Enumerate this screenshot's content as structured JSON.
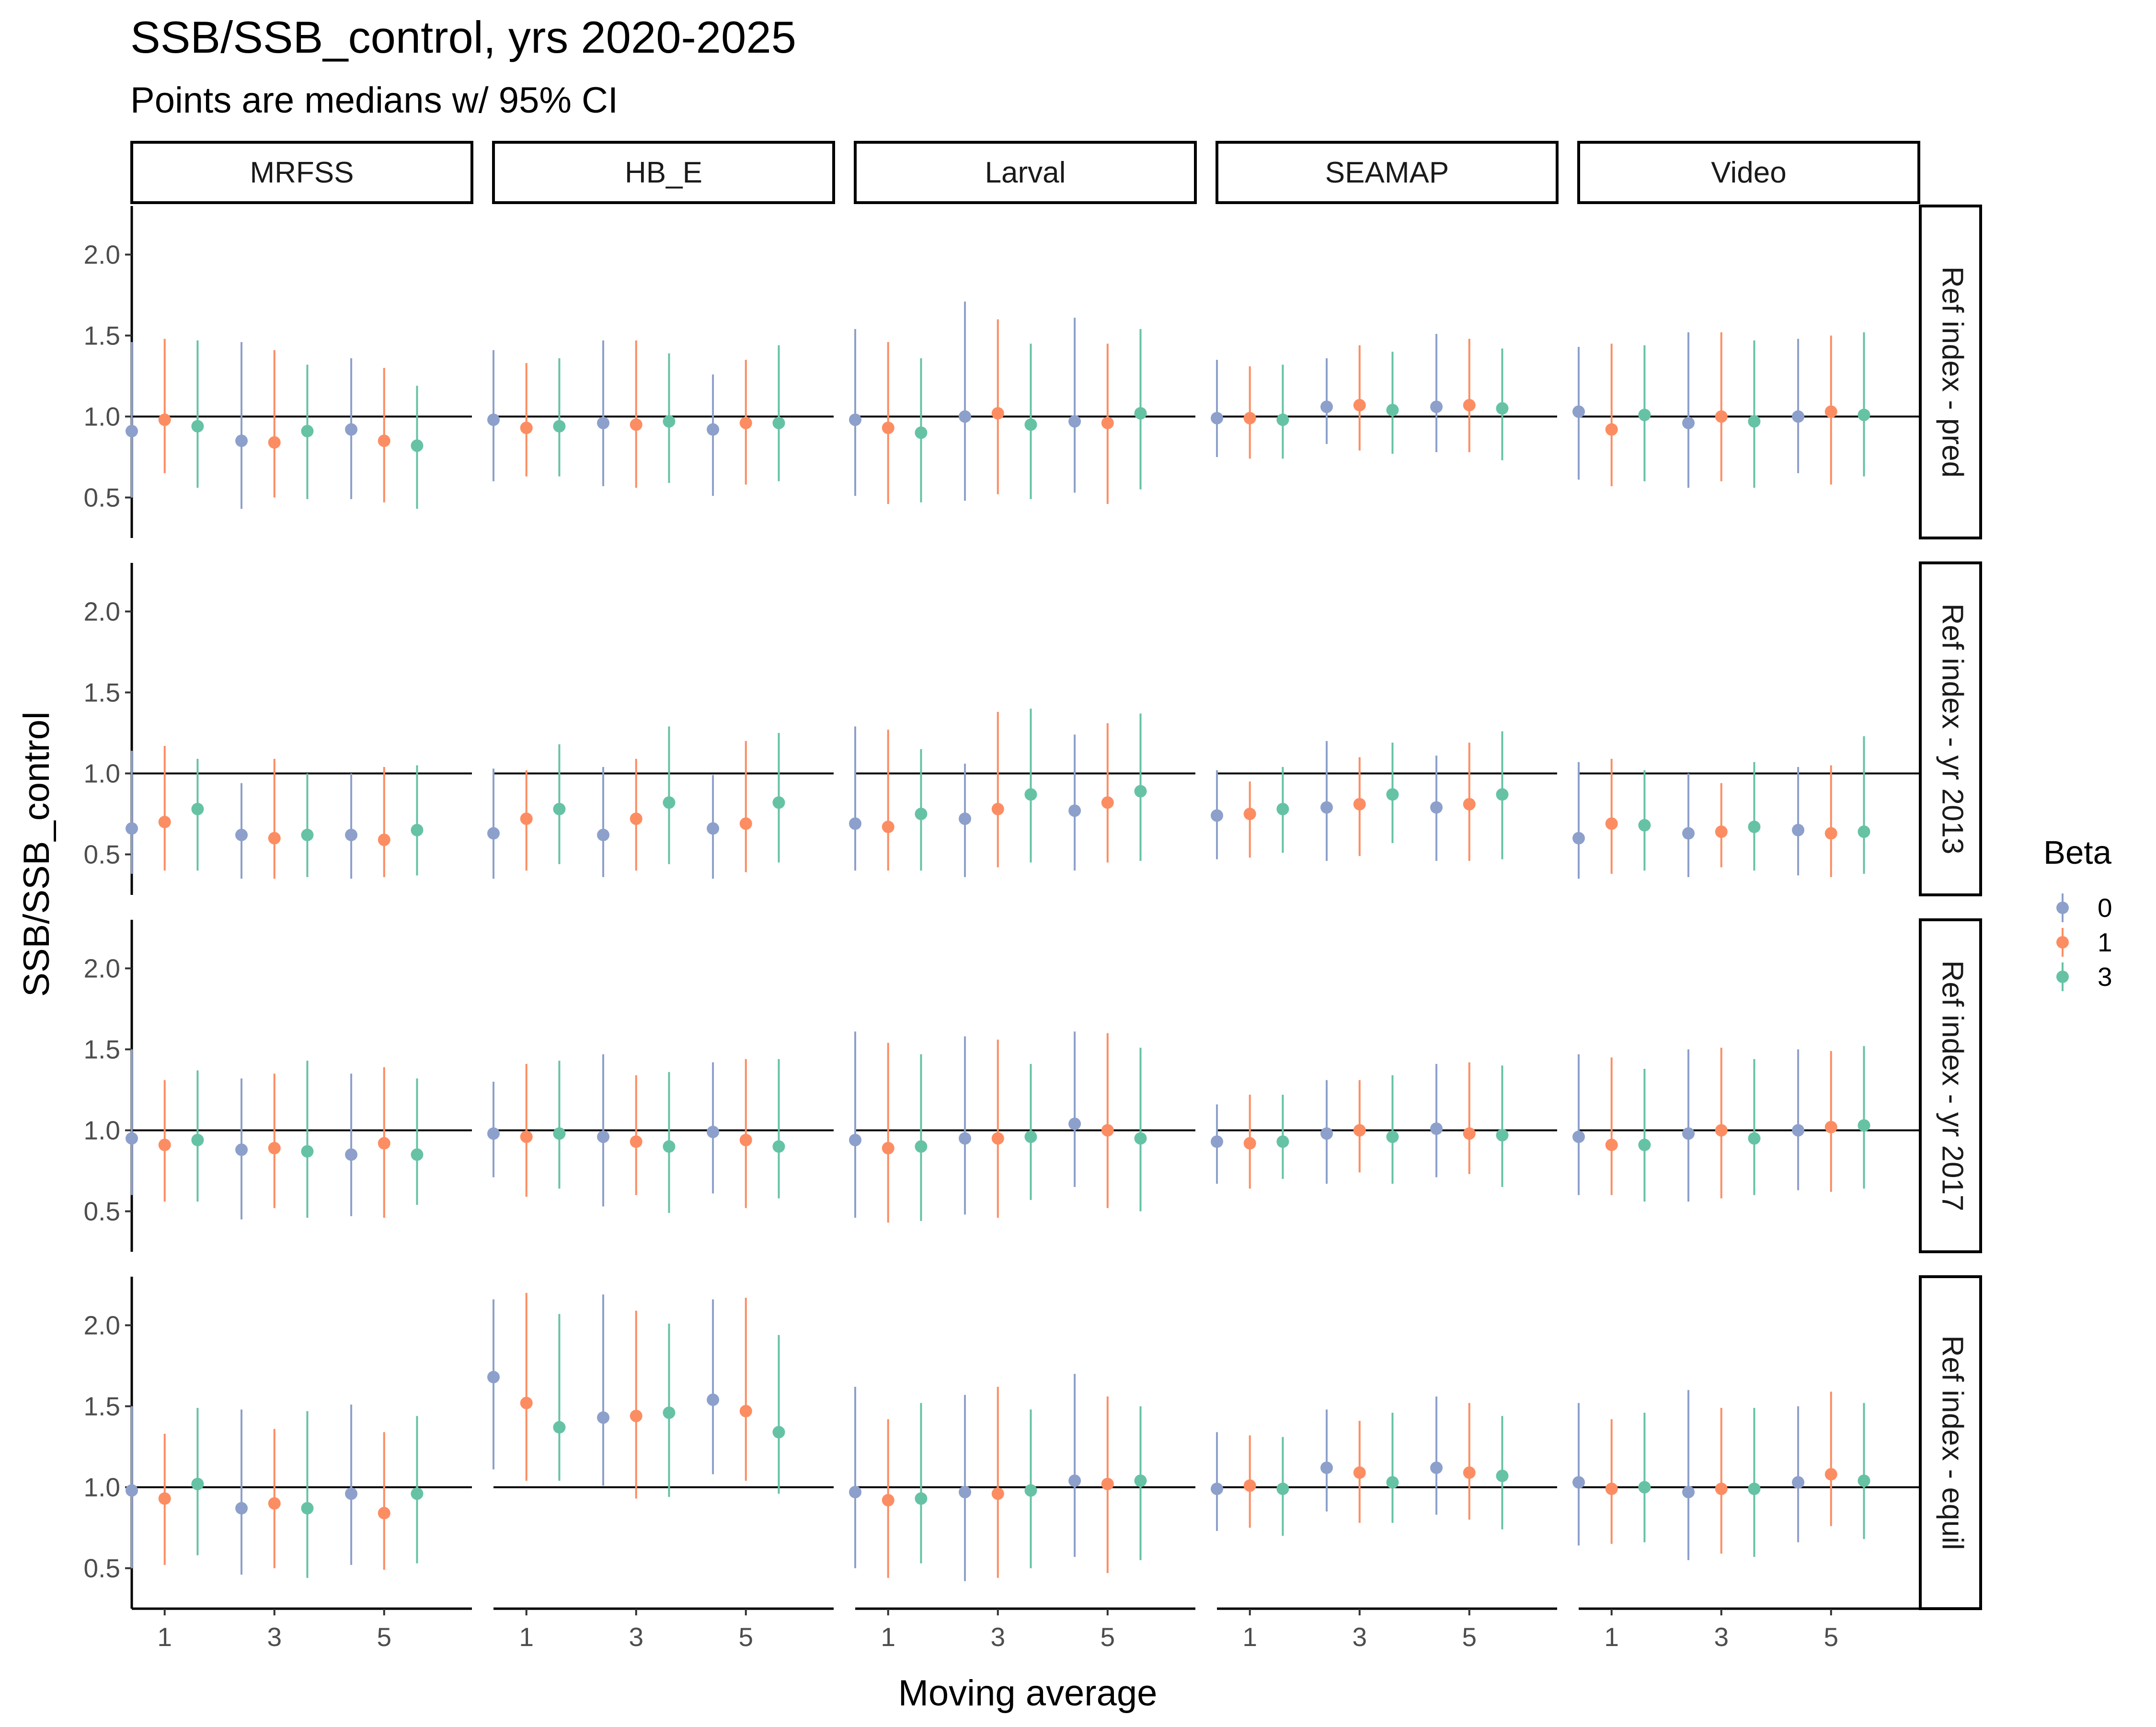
{
  "title": "SSB/SSB_control, yrs 2020-2025",
  "subtitle": "Points are medians w/ 95% CI",
  "colors": {
    "beta_0": "#8DA0CB",
    "beta_1": "#FC8D62",
    "beta_3": "#66C2A5",
    "reference_line": "#000000"
  },
  "chart_data": {
    "type": "scatter",
    "xlabel": "Moving average",
    "ylabel": "SSB/SSB_control",
    "x_ticks": [
      "1",
      "3",
      "5"
    ],
    "y_ticks": [
      "0.5",
      "1.0",
      "1.5",
      "2.0"
    ],
    "ylim": [
      0.25,
      2.3
    ],
    "reference_y": 1.0,
    "columns": [
      "MRFSS",
      "HB_E",
      "Larval",
      "SEAMAP",
      "Video"
    ],
    "rows": [
      "Ref index - pred",
      "Ref index - yr 2013",
      "Ref index - yr 2017",
      "Ref index - equil"
    ],
    "legend": {
      "title": "Beta",
      "entries": [
        "0",
        "1",
        "3"
      ],
      "position": "right"
    },
    "moving_average": [
      1,
      3,
      5
    ],
    "beta": [
      "0",
      "1",
      "3"
    ],
    "panels": [
      {
        "row": "Ref index - pred",
        "column": "MRFSS",
        "median": [
          [
            0.91,
            0.98,
            0.94
          ],
          [
            0.85,
            0.84,
            0.91
          ],
          [
            0.92,
            0.85,
            0.82
          ]
        ],
        "lower": [
          [
            0.5,
            0.65,
            0.56
          ],
          [
            0.43,
            0.5,
            0.49
          ],
          [
            0.49,
            0.47,
            0.43
          ]
        ],
        "upper": [
          [
            1.46,
            1.48,
            1.47
          ],
          [
            1.46,
            1.41,
            1.32
          ],
          [
            1.36,
            1.3,
            1.19
          ]
        ]
      },
      {
        "row": "Ref index - pred",
        "column": "HB_E",
        "median": [
          [
            0.98,
            0.93,
            0.94
          ],
          [
            0.96,
            0.95,
            0.97
          ],
          [
            0.92,
            0.96,
            0.96
          ]
        ],
        "lower": [
          [
            0.6,
            0.63,
            0.63
          ],
          [
            0.57,
            0.56,
            0.59
          ],
          [
            0.51,
            0.58,
            0.6
          ]
        ],
        "upper": [
          [
            1.41,
            1.33,
            1.36
          ],
          [
            1.47,
            1.47,
            1.39
          ],
          [
            1.26,
            1.35,
            1.44
          ]
        ]
      },
      {
        "row": "Ref index - pred",
        "column": "Larval",
        "median": [
          [
            0.98,
            0.93,
            0.9
          ],
          [
            1.0,
            1.02,
            0.95
          ],
          [
            0.97,
            0.96,
            1.02
          ]
        ],
        "lower": [
          [
            0.51,
            0.46,
            0.47
          ],
          [
            0.48,
            0.52,
            0.49
          ],
          [
            0.53,
            0.46,
            0.55
          ]
        ],
        "upper": [
          [
            1.54,
            1.46,
            1.36
          ],
          [
            1.71,
            1.6,
            1.45
          ],
          [
            1.61,
            1.45,
            1.54
          ]
        ]
      },
      {
        "row": "Ref index - pred",
        "column": "SEAMAP",
        "median": [
          [
            0.99,
            0.99,
            0.98
          ],
          [
            1.06,
            1.07,
            1.04
          ],
          [
            1.06,
            1.07,
            1.05
          ]
        ],
        "lower": [
          [
            0.75,
            0.74,
            0.74
          ],
          [
            0.83,
            0.79,
            0.77
          ],
          [
            0.78,
            0.78,
            0.73
          ]
        ],
        "upper": [
          [
            1.35,
            1.31,
            1.32
          ],
          [
            1.36,
            1.44,
            1.4
          ],
          [
            1.51,
            1.48,
            1.42
          ]
        ]
      },
      {
        "row": "Ref index - pred",
        "column": "Video",
        "median": [
          [
            1.03,
            0.92,
            1.01
          ],
          [
            0.96,
            1.0,
            0.97
          ],
          [
            1.0,
            1.03,
            1.01
          ]
        ],
        "lower": [
          [
            0.61,
            0.57,
            0.6
          ],
          [
            0.56,
            0.6,
            0.56
          ],
          [
            0.65,
            0.58,
            0.63
          ]
        ],
        "upper": [
          [
            1.43,
            1.45,
            1.44
          ],
          [
            1.52,
            1.52,
            1.47
          ],
          [
            1.48,
            1.5,
            1.52
          ]
        ]
      },
      {
        "row": "Ref index - yr 2013",
        "column": "MRFSS",
        "median": [
          [
            0.66,
            0.7,
            0.78
          ],
          [
            0.62,
            0.6,
            0.62
          ],
          [
            0.62,
            0.59,
            0.65
          ]
        ],
        "lower": [
          [
            0.38,
            0.4,
            0.4
          ],
          [
            0.35,
            0.35,
            0.36
          ],
          [
            0.35,
            0.36,
            0.37
          ]
        ],
        "upper": [
          [
            1.14,
            1.17,
            1.09
          ],
          [
            0.94,
            1.09,
            1.0
          ],
          [
            1.0,
            1.04,
            1.05
          ]
        ]
      },
      {
        "row": "Ref index - yr 2013",
        "column": "HB_E",
        "median": [
          [
            0.63,
            0.72,
            0.78
          ],
          [
            0.62,
            0.72,
            0.82
          ],
          [
            0.66,
            0.69,
            0.82
          ]
        ],
        "lower": [
          [
            0.35,
            0.4,
            0.44
          ],
          [
            0.36,
            0.4,
            0.44
          ],
          [
            0.35,
            0.39,
            0.45
          ]
        ],
        "upper": [
          [
            1.03,
            1.02,
            1.18
          ],
          [
            1.04,
            1.09,
            1.29
          ],
          [
            0.99,
            1.2,
            1.25
          ]
        ]
      },
      {
        "row": "Ref index - yr 2013",
        "column": "Larval",
        "median": [
          [
            0.69,
            0.67,
            0.75
          ],
          [
            0.72,
            0.78,
            0.87
          ],
          [
            0.77,
            0.82,
            0.89
          ]
        ],
        "lower": [
          [
            0.4,
            0.4,
            0.4
          ],
          [
            0.36,
            0.42,
            0.45
          ],
          [
            0.4,
            0.45,
            0.46
          ]
        ],
        "upper": [
          [
            1.29,
            1.27,
            1.15
          ],
          [
            1.06,
            1.38,
            1.4
          ],
          [
            1.24,
            1.31,
            1.37
          ]
        ]
      },
      {
        "row": "Ref index - yr 2013",
        "column": "SEAMAP",
        "median": [
          [
            0.74,
            0.75,
            0.78
          ],
          [
            0.79,
            0.81,
            0.87
          ],
          [
            0.79,
            0.81,
            0.87
          ]
        ],
        "lower": [
          [
            0.47,
            0.48,
            0.51
          ],
          [
            0.46,
            0.49,
            0.57
          ],
          [
            0.46,
            0.46,
            0.47
          ]
        ],
        "upper": [
          [
            1.02,
            0.95,
            1.04
          ],
          [
            1.2,
            1.1,
            1.19
          ],
          [
            1.11,
            1.19,
            1.26
          ]
        ]
      },
      {
        "row": "Ref index - yr 2013",
        "column": "Video",
        "median": [
          [
            0.6,
            0.69,
            0.68
          ],
          [
            0.63,
            0.64,
            0.67
          ],
          [
            0.65,
            0.63,
            0.64
          ]
        ],
        "lower": [
          [
            0.35,
            0.38,
            0.4
          ],
          [
            0.36,
            0.42,
            0.4
          ],
          [
            0.37,
            0.36,
            0.38
          ]
        ],
        "upper": [
          [
            1.07,
            1.09,
            1.02
          ],
          [
            1.0,
            0.94,
            1.07
          ],
          [
            1.04,
            1.05,
            1.23
          ]
        ]
      },
      {
        "row": "Ref index - yr 2017",
        "column": "MRFSS",
        "median": [
          [
            0.95,
            0.91,
            0.94
          ],
          [
            0.88,
            0.89,
            0.87
          ],
          [
            0.85,
            0.92,
            0.85
          ]
        ],
        "lower": [
          [
            0.6,
            0.56,
            0.56
          ],
          [
            0.45,
            0.52,
            0.46
          ],
          [
            0.47,
            0.46,
            0.54
          ]
        ],
        "upper": [
          [
            1.5,
            1.31,
            1.37
          ],
          [
            1.32,
            1.35,
            1.43
          ],
          [
            1.35,
            1.39,
            1.32
          ]
        ]
      },
      {
        "row": "Ref index - yr 2017",
        "column": "HB_E",
        "median": [
          [
            0.98,
            0.96,
            0.98
          ],
          [
            0.96,
            0.93,
            0.9
          ],
          [
            0.99,
            0.94,
            0.9
          ]
        ],
        "lower": [
          [
            0.71,
            0.59,
            0.64
          ],
          [
            0.53,
            0.6,
            0.49
          ],
          [
            0.61,
            0.52,
            0.58
          ]
        ],
        "upper": [
          [
            1.3,
            1.41,
            1.43
          ],
          [
            1.47,
            1.34,
            1.36
          ],
          [
            1.42,
            1.44,
            1.44
          ]
        ]
      },
      {
        "row": "Ref index - yr 2017",
        "column": "Larval",
        "median": [
          [
            0.94,
            0.89,
            0.9
          ],
          [
            0.95,
            0.95,
            0.96
          ],
          [
            1.04,
            1.0,
            0.95
          ]
        ],
        "lower": [
          [
            0.46,
            0.43,
            0.44
          ],
          [
            0.48,
            0.46,
            0.57
          ],
          [
            0.65,
            0.52,
            0.5
          ]
        ],
        "upper": [
          [
            1.61,
            1.54,
            1.47
          ],
          [
            1.58,
            1.56,
            1.41
          ],
          [
            1.61,
            1.6,
            1.51
          ]
        ]
      },
      {
        "row": "Ref index - yr 2017",
        "column": "SEAMAP",
        "median": [
          [
            0.93,
            0.92,
            0.93
          ],
          [
            0.98,
            1.0,
            0.96
          ],
          [
            1.01,
            0.98,
            0.97
          ]
        ],
        "lower": [
          [
            0.67,
            0.64,
            0.7
          ],
          [
            0.67,
            0.74,
            0.67
          ],
          [
            0.71,
            0.73,
            0.65
          ]
        ],
        "upper": [
          [
            1.16,
            1.22,
            1.22
          ],
          [
            1.31,
            1.31,
            1.34
          ],
          [
            1.41,
            1.42,
            1.4
          ]
        ]
      },
      {
        "row": "Ref index - yr 2017",
        "column": "Video",
        "median": [
          [
            0.96,
            0.91,
            0.91
          ],
          [
            0.98,
            1.0,
            0.95
          ],
          [
            1.0,
            1.02,
            1.03
          ]
        ],
        "lower": [
          [
            0.6,
            0.6,
            0.56
          ],
          [
            0.56,
            0.58,
            0.6
          ],
          [
            0.63,
            0.62,
            0.64
          ]
        ],
        "upper": [
          [
            1.47,
            1.45,
            1.38
          ],
          [
            1.5,
            1.51,
            1.44
          ],
          [
            1.5,
            1.49,
            1.52
          ]
        ]
      },
      {
        "row": "Ref index - equil",
        "column": "MRFSS",
        "median": [
          [
            0.98,
            0.93,
            1.02
          ],
          [
            0.87,
            0.9,
            0.87
          ],
          [
            0.96,
            0.84,
            0.96
          ]
        ],
        "lower": [
          [
            0.5,
            0.52,
            0.58
          ],
          [
            0.46,
            0.5,
            0.44
          ],
          [
            0.52,
            0.49,
            0.53
          ]
        ],
        "upper": [
          [
            1.5,
            1.33,
            1.49
          ],
          [
            1.48,
            1.36,
            1.47
          ],
          [
            1.51,
            1.34,
            1.44
          ]
        ]
      },
      {
        "row": "Ref index - equil",
        "column": "HB_E",
        "median": [
          [
            1.68,
            1.52,
            1.37
          ],
          [
            1.43,
            1.44,
            1.46
          ],
          [
            1.54,
            1.47,
            1.34
          ]
        ],
        "lower": [
          [
            1.11,
            1.04,
            1.04
          ],
          [
            1.01,
            0.93,
            0.94
          ],
          [
            1.08,
            1.04,
            0.96
          ]
        ],
        "upper": [
          [
            2.16,
            2.2,
            2.07
          ],
          [
            2.19,
            2.09,
            2.01
          ],
          [
            2.16,
            2.17,
            1.94
          ]
        ]
      },
      {
        "row": "Ref index - equil",
        "column": "Larval",
        "median": [
          [
            0.97,
            0.92,
            0.93
          ],
          [
            0.97,
            0.96,
            0.98
          ],
          [
            1.04,
            1.02,
            1.04
          ]
        ],
        "lower": [
          [
            0.5,
            0.44,
            0.53
          ],
          [
            0.42,
            0.44,
            0.5
          ],
          [
            0.57,
            0.47,
            0.55
          ]
        ],
        "upper": [
          [
            1.62,
            1.42,
            1.52
          ],
          [
            1.57,
            1.62,
            1.48
          ],
          [
            1.7,
            1.56,
            1.5
          ]
        ]
      },
      {
        "row": "Ref index - equil",
        "column": "SEAMAP",
        "median": [
          [
            0.99,
            1.01,
            0.99
          ],
          [
            1.12,
            1.09,
            1.03
          ],
          [
            1.12,
            1.09,
            1.07
          ]
        ],
        "lower": [
          [
            0.73,
            0.75,
            0.7
          ],
          [
            0.85,
            0.78,
            0.78
          ],
          [
            0.83,
            0.8,
            0.74
          ]
        ],
        "upper": [
          [
            1.34,
            1.32,
            1.31
          ],
          [
            1.48,
            1.41,
            1.46
          ],
          [
            1.56,
            1.52,
            1.44
          ]
        ]
      },
      {
        "row": "Ref index - equil",
        "column": "Video",
        "median": [
          [
            1.03,
            0.99,
            1.0
          ],
          [
            0.97,
            0.99,
            0.99
          ],
          [
            1.03,
            1.08,
            1.04
          ]
        ],
        "lower": [
          [
            0.64,
            0.65,
            0.66
          ],
          [
            0.55,
            0.59,
            0.57
          ],
          [
            0.66,
            0.76,
            0.68
          ]
        ],
        "upper": [
          [
            1.52,
            1.42,
            1.46
          ],
          [
            1.6,
            1.49,
            1.49
          ],
          [
            1.5,
            1.59,
            1.52
          ]
        ]
      }
    ]
  }
}
